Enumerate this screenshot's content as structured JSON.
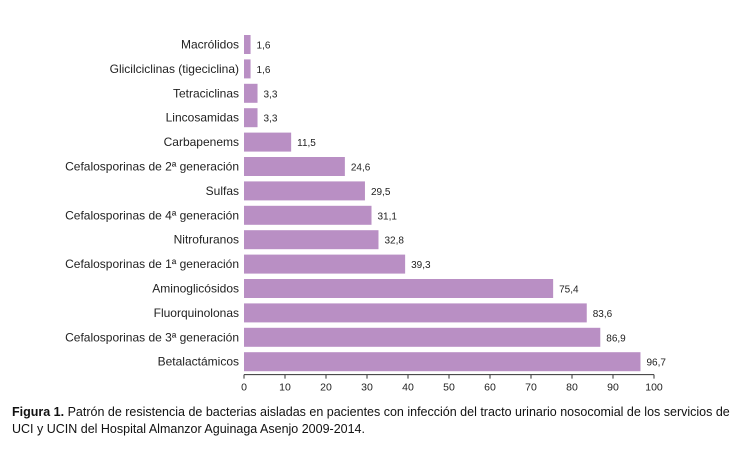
{
  "chart_data": {
    "type": "bar",
    "orientation": "horizontal",
    "categories": [
      "Macrólidos",
      "Glicilciclinas (tigeciclina)",
      "Tetraciclinas",
      "Lincosamidas",
      "Carbapenems",
      "Cefalosporinas de 2ª generación",
      "Sulfas",
      "Cefalosporinas de 4ª generación",
      "Nitrofuranos",
      "Cefalosporinas de 1ª generación",
      "Aminoglicósidos",
      "Fluorquinolonas",
      "Cefalosporinas de 3ª generación",
      "Betalactámicos"
    ],
    "values": [
      1.6,
      1.6,
      3.3,
      3.3,
      11.5,
      24.6,
      29.5,
      31.1,
      32.8,
      39.3,
      75.4,
      83.6,
      86.9,
      96.7
    ],
    "value_labels": [
      "1,6",
      "1,6",
      "3,3",
      "3,3",
      "11,5",
      "24,6",
      "29,5",
      "31,1",
      "32,8",
      "39,3",
      "75,4",
      "83,6",
      "86,9",
      "96,7"
    ],
    "xlim": [
      0,
      100
    ],
    "x_ticks": [
      0,
      10,
      20,
      30,
      40,
      50,
      60,
      70,
      80,
      90,
      100
    ],
    "grid": false,
    "bar_color": "#b98fc4"
  },
  "caption": {
    "label": "Figura 1.",
    "text": " Patrón de resistencia de bacterias aisladas en pacientes con infección del tracto urinario nosocomial de los servicios de UCI y UCIN del Hospital Almanzor Aguinaga Asenjo 2009-2014."
  }
}
